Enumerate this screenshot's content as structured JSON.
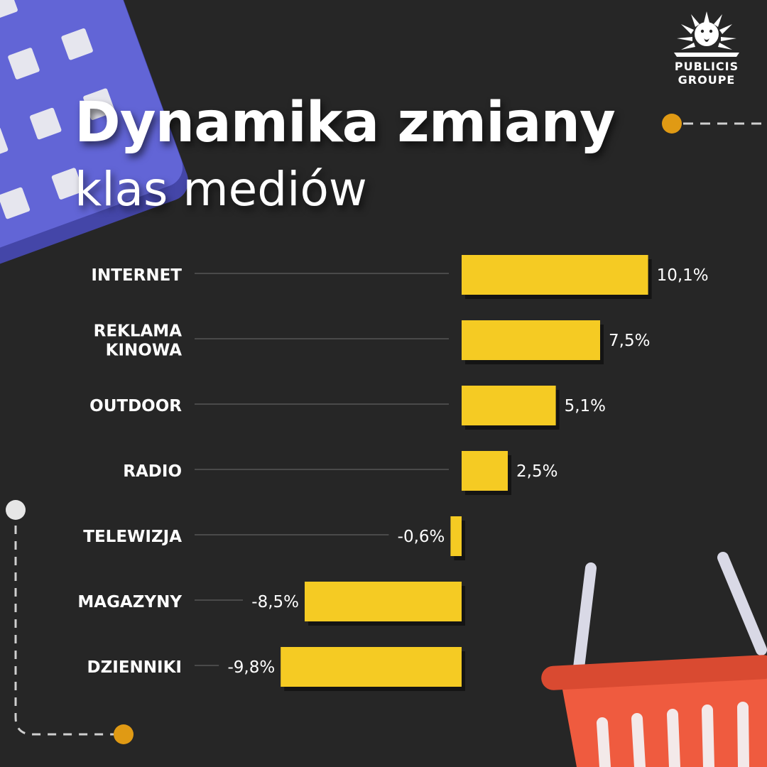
{
  "title": "Dynamika zmiany",
  "subtitle": "klas mediów",
  "logo": {
    "line1": "PUBLICIS",
    "line2": "GROUPE"
  },
  "colors": {
    "background": "#262626",
    "bar": "#f5cb23",
    "calendar": "#6265d6",
    "basket": "#ef5b3f",
    "dot": "#e09a14"
  },
  "chart_data": {
    "type": "bar",
    "orientation": "horizontal",
    "categories": [
      [
        "INTERNET"
      ],
      [
        "REKLAMA",
        "KINOWA"
      ],
      [
        "OUTDOOR"
      ],
      [
        "RADIO"
      ],
      [
        "TELEWIZJA"
      ],
      [
        "MAGAZYNY"
      ],
      [
        "DZIENNIKI"
      ]
    ],
    "values": [
      10.1,
      7.5,
      5.1,
      2.5,
      -0.6,
      -8.5,
      -9.8
    ],
    "value_labels": [
      "10,1%",
      "7,5%",
      "5,1%",
      "2,5%",
      "-0,6%",
      "-8,5%",
      "-9,8%"
    ],
    "unit": "%"
  }
}
